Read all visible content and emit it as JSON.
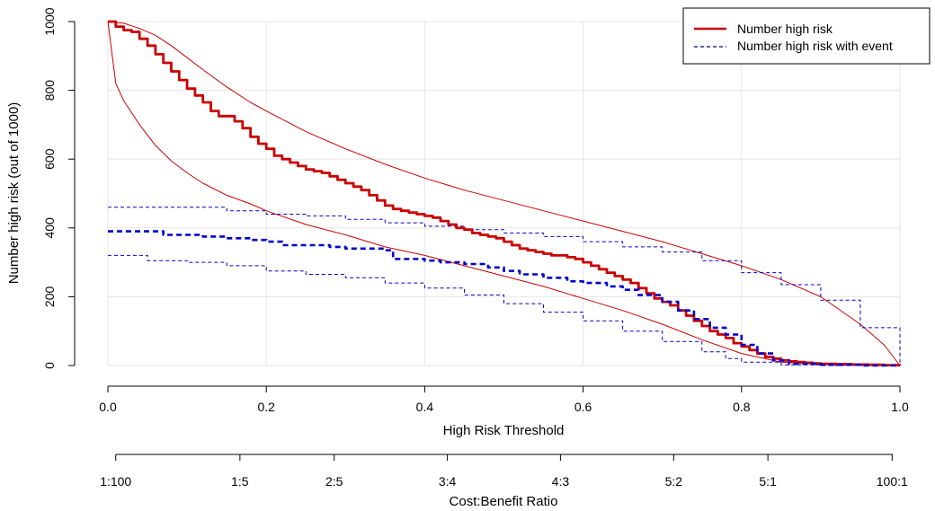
{
  "chart_data": {
    "type": "line",
    "title": "",
    "xlabel": "High Risk Threshold",
    "ylabel": "Number high risk (out of 1000)",
    "xlim": [
      0,
      1
    ],
    "ylim": [
      0,
      1000
    ],
    "x_ticks": [
      "0.0",
      "0.2",
      "0.4",
      "0.6",
      "0.8",
      "1.0"
    ],
    "y_ticks": [
      "0",
      "200",
      "400",
      "600",
      "800",
      "1000"
    ],
    "grid": true,
    "legend_position": "top-right",
    "legend": [
      {
        "label": "Number high risk",
        "style": "solid",
        "color": "#cc0000"
      },
      {
        "label": "Number high risk with event",
        "style": "dashed",
        "color": "#00008b"
      }
    ],
    "secondary_axis": {
      "label": "Cost:Benefit Ratio",
      "ticks": [
        {
          "threshold": 0.0099,
          "label": "1:100"
        },
        {
          "threshold": 0.1667,
          "label": "1:5"
        },
        {
          "threshold": 0.2857,
          "label": "2:5"
        },
        {
          "threshold": 0.4286,
          "label": "3:4"
        },
        {
          "threshold": 0.5714,
          "label": "4:3"
        },
        {
          "threshold": 0.7143,
          "label": "5:2"
        },
        {
          "threshold": 0.8333,
          "label": "5:1"
        },
        {
          "threshold": 0.9901,
          "label": "100:1"
        }
      ]
    },
    "series": [
      {
        "name": "Number high risk",
        "role": "main",
        "color": "#cc0000",
        "dashed": false,
        "step": true,
        "x": [
          0,
          0.01,
          0.02,
          0.03,
          0.04,
          0.05,
          0.06,
          0.07,
          0.08,
          0.09,
          0.1,
          0.11,
          0.12,
          0.13,
          0.14,
          0.16,
          0.17,
          0.18,
          0.19,
          0.2,
          0.21,
          0.22,
          0.23,
          0.24,
          0.25,
          0.26,
          0.27,
          0.28,
          0.29,
          0.3,
          0.31,
          0.32,
          0.33,
          0.34,
          0.35,
          0.36,
          0.37,
          0.38,
          0.39,
          0.4,
          0.41,
          0.42,
          0.43,
          0.44,
          0.45,
          0.46,
          0.47,
          0.48,
          0.49,
          0.5,
          0.51,
          0.52,
          0.53,
          0.54,
          0.55,
          0.56,
          0.57,
          0.58,
          0.59,
          0.6,
          0.61,
          0.62,
          0.63,
          0.64,
          0.65,
          0.66,
          0.67,
          0.68,
          0.69,
          0.7,
          0.71,
          0.72,
          0.73,
          0.74,
          0.75,
          0.76,
          0.77,
          0.78,
          0.79,
          0.8,
          0.81,
          0.82,
          0.83,
          0.84,
          0.85,
          0.86,
          0.87,
          0.88,
          0.89,
          0.9,
          0.92,
          0.94,
          0.96,
          0.98,
          1.0
        ],
        "y": [
          1000,
          985,
          975,
          970,
          950,
          930,
          905,
          880,
          855,
          830,
          805,
          785,
          765,
          740,
          725,
          710,
          690,
          665,
          645,
          630,
          610,
          600,
          590,
          580,
          570,
          565,
          560,
          550,
          540,
          530,
          520,
          510,
          495,
          480,
          465,
          455,
          450,
          445,
          440,
          435,
          430,
          420,
          410,
          400,
          395,
          385,
          380,
          375,
          370,
          360,
          350,
          340,
          335,
          330,
          325,
          320,
          320,
          315,
          310,
          300,
          290,
          280,
          270,
          260,
          250,
          240,
          225,
          210,
          195,
          185,
          175,
          160,
          145,
          130,
          115,
          100,
          90,
          80,
          65,
          55,
          45,
          35,
          25,
          20,
          15,
          12,
          10,
          8,
          6,
          5,
          4,
          3,
          2,
          1,
          0
        ]
      },
      {
        "name": "Number high risk upper bound",
        "role": "ci",
        "color": "#cc0000",
        "dashed": false,
        "step": false,
        "x": [
          0,
          0.02,
          0.04,
          0.06,
          0.08,
          0.1,
          0.12,
          0.15,
          0.18,
          0.2,
          0.25,
          0.3,
          0.35,
          0.4,
          0.45,
          0.5,
          0.55,
          0.6,
          0.65,
          0.7,
          0.75,
          0.8,
          0.85,
          0.9,
          0.95,
          0.98,
          1.0
        ],
        "y": [
          1000,
          995,
          980,
          960,
          930,
          895,
          860,
          810,
          765,
          740,
          680,
          630,
          585,
          545,
          510,
          480,
          450,
          420,
          390,
          360,
          325,
          290,
          250,
          200,
          120,
          60,
          0
        ]
      },
      {
        "name": "Number high risk lower bound",
        "role": "ci",
        "color": "#cc0000",
        "dashed": false,
        "step": false,
        "x": [
          0,
          0.01,
          0.02,
          0.04,
          0.06,
          0.08,
          0.1,
          0.12,
          0.15,
          0.18,
          0.2,
          0.25,
          0.3,
          0.35,
          0.4,
          0.45,
          0.5,
          0.55,
          0.6,
          0.65,
          0.7,
          0.75,
          0.8,
          0.85,
          0.9,
          0.95,
          1.0
        ],
        "y": [
          1000,
          820,
          770,
          700,
          640,
          595,
          560,
          530,
          495,
          470,
          450,
          410,
          380,
          345,
          320,
          290,
          260,
          230,
          195,
          160,
          120,
          75,
          35,
          10,
          3,
          1,
          0
        ]
      },
      {
        "name": "Number high risk with event",
        "role": "main",
        "color": "#0000cc",
        "dashed": true,
        "step": true,
        "x": [
          0,
          0.02,
          0.04,
          0.06,
          0.07,
          0.1,
          0.12,
          0.15,
          0.18,
          0.2,
          0.22,
          0.25,
          0.28,
          0.3,
          0.32,
          0.35,
          0.36,
          0.4,
          0.42,
          0.45,
          0.48,
          0.5,
          0.52,
          0.55,
          0.58,
          0.6,
          0.63,
          0.65,
          0.67,
          0.7,
          0.72,
          0.74,
          0.76,
          0.78,
          0.8,
          0.82,
          0.84,
          0.86,
          0.9,
          0.95,
          1.0
        ],
        "y": [
          390,
          390,
          390,
          390,
          380,
          380,
          375,
          370,
          365,
          360,
          350,
          350,
          345,
          340,
          340,
          335,
          310,
          305,
          300,
          295,
          285,
          275,
          265,
          255,
          245,
          240,
          230,
          220,
          205,
          185,
          160,
          135,
          110,
          90,
          60,
          35,
          15,
          5,
          2,
          0,
          0
        ]
      },
      {
        "name": "Number high risk with event upper bound",
        "role": "ci",
        "color": "#0000cc",
        "dashed": true,
        "step": true,
        "x": [
          0,
          0.05,
          0.1,
          0.15,
          0.2,
          0.25,
          0.3,
          0.35,
          0.4,
          0.45,
          0.5,
          0.55,
          0.6,
          0.65,
          0.7,
          0.75,
          0.8,
          0.85,
          0.9,
          0.95,
          1.0
        ],
        "y": [
          460,
          460,
          460,
          450,
          440,
          435,
          425,
          415,
          405,
          395,
          385,
          375,
          360,
          345,
          330,
          305,
          270,
          235,
          190,
          110,
          0
        ]
      },
      {
        "name": "Number high risk with event lower bound",
        "role": "ci",
        "color": "#0000cc",
        "dashed": true,
        "step": true,
        "x": [
          0,
          0.05,
          0.1,
          0.15,
          0.2,
          0.25,
          0.3,
          0.35,
          0.4,
          0.45,
          0.5,
          0.55,
          0.6,
          0.65,
          0.7,
          0.75,
          0.78,
          0.8,
          0.85,
          0.9,
          1.0
        ],
        "y": [
          320,
          305,
          300,
          290,
          275,
          265,
          255,
          240,
          225,
          205,
          180,
          155,
          130,
          100,
          70,
          40,
          20,
          10,
          2,
          0,
          0
        ]
      }
    ]
  }
}
